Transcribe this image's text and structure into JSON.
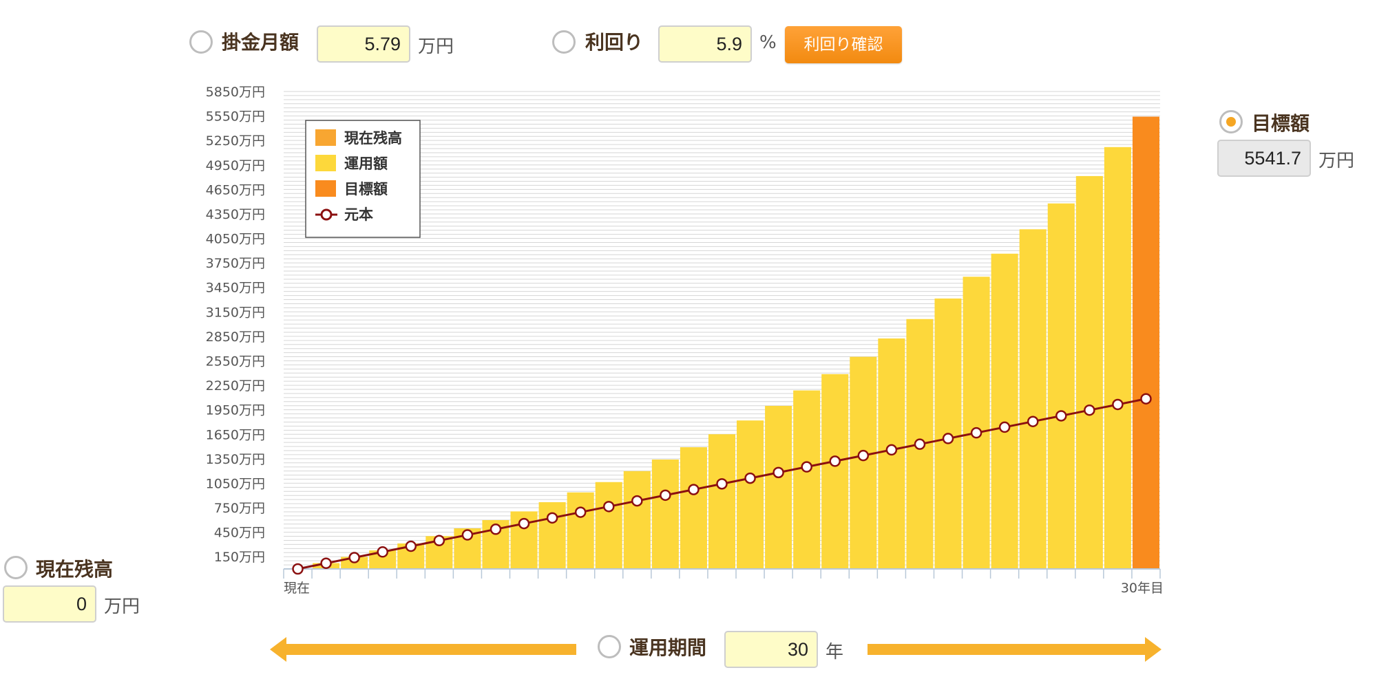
{
  "colors": {
    "current_balance": "#f8a631",
    "investment": "#fdd83b",
    "target": "#f98b1e",
    "principal_line": "#8b1010",
    "arrow": "#f7b22d"
  },
  "controls": {
    "monthly": {
      "label": "掛金月額",
      "value": "5.79",
      "unit": "万円"
    },
    "yield": {
      "label": "利回り",
      "value": "5.9",
      "unit": "%",
      "button": "利回り確認"
    },
    "target": {
      "label": "目標額",
      "value": "5541.7",
      "unit": "万円",
      "selected": true
    },
    "current": {
      "label": "現在残高",
      "value": "0",
      "unit": "万円"
    },
    "period": {
      "label": "運用期間",
      "value": "30",
      "unit": "年"
    }
  },
  "chart_data": {
    "type": "bar",
    "ylim": [
      0,
      5850
    ],
    "y_ticks": [
      150,
      450,
      750,
      1050,
      1350,
      1650,
      1950,
      2250,
      2550,
      2850,
      3150,
      3450,
      3750,
      4050,
      4350,
      4650,
      4950,
      5250,
      5550,
      5850
    ],
    "y_tick_labels": [
      "150万円",
      "450万円",
      "750万円",
      "1050万円",
      "1350万円",
      "1650万円",
      "1950万円",
      "2250万円",
      "2550万円",
      "2850万円",
      "3150万円",
      "3450万円",
      "3750万円",
      "4050万円",
      "4350万円",
      "4650万円",
      "4950万円",
      "5250万円",
      "5550万円",
      "5850万円"
    ],
    "x_labels": {
      "start": "現在",
      "end": "30年目"
    },
    "legend": {
      "position": "top-left",
      "entries": [
        {
          "name": "現在残高",
          "kind": "box",
          "color_key": "current_balance"
        },
        {
          "name": "運用額",
          "kind": "box",
          "color_key": "investment"
        },
        {
          "name": "目標額",
          "kind": "box",
          "color_key": "target"
        },
        {
          "name": "元本",
          "kind": "line",
          "color_key": "principal_line"
        }
      ]
    },
    "series": [
      {
        "name": "運用額",
        "type": "bar",
        "values": [
          0,
          71.5,
          147.2,
          227.4,
          312.3,
          402.2,
          497.4,
          598.2,
          704.9,
          817.9,
          937.6,
          1064.3,
          1198.5,
          1340.6,
          1491.1,
          1650.4,
          1819.1,
          1997.7,
          2186.9,
          2387.2,
          2599.3,
          2823.9,
          3061.8,
          3313.6,
          3580.3,
          3862.7,
          4161.7,
          4478.4,
          4813.7,
          5168.8
        ]
      },
      {
        "name": "目標額",
        "type": "bar",
        "index": 30,
        "value": 5541.7
      },
      {
        "name": "元本",
        "type": "line",
        "values": [
          0,
          69.5,
          139.0,
          208.4,
          277.9,
          347.4,
          416.9,
          486.4,
          555.8,
          625.3,
          694.8,
          764.3,
          833.8,
          903.2,
          972.7,
          1042.2,
          1111.7,
          1181.2,
          1250.6,
          1320.1,
          1389.6,
          1459.1,
          1528.6,
          1598.0,
          1667.5,
          1737.0,
          1806.5,
          1876.0,
          1945.4,
          2014.9,
          2084.4
        ]
      }
    ]
  }
}
